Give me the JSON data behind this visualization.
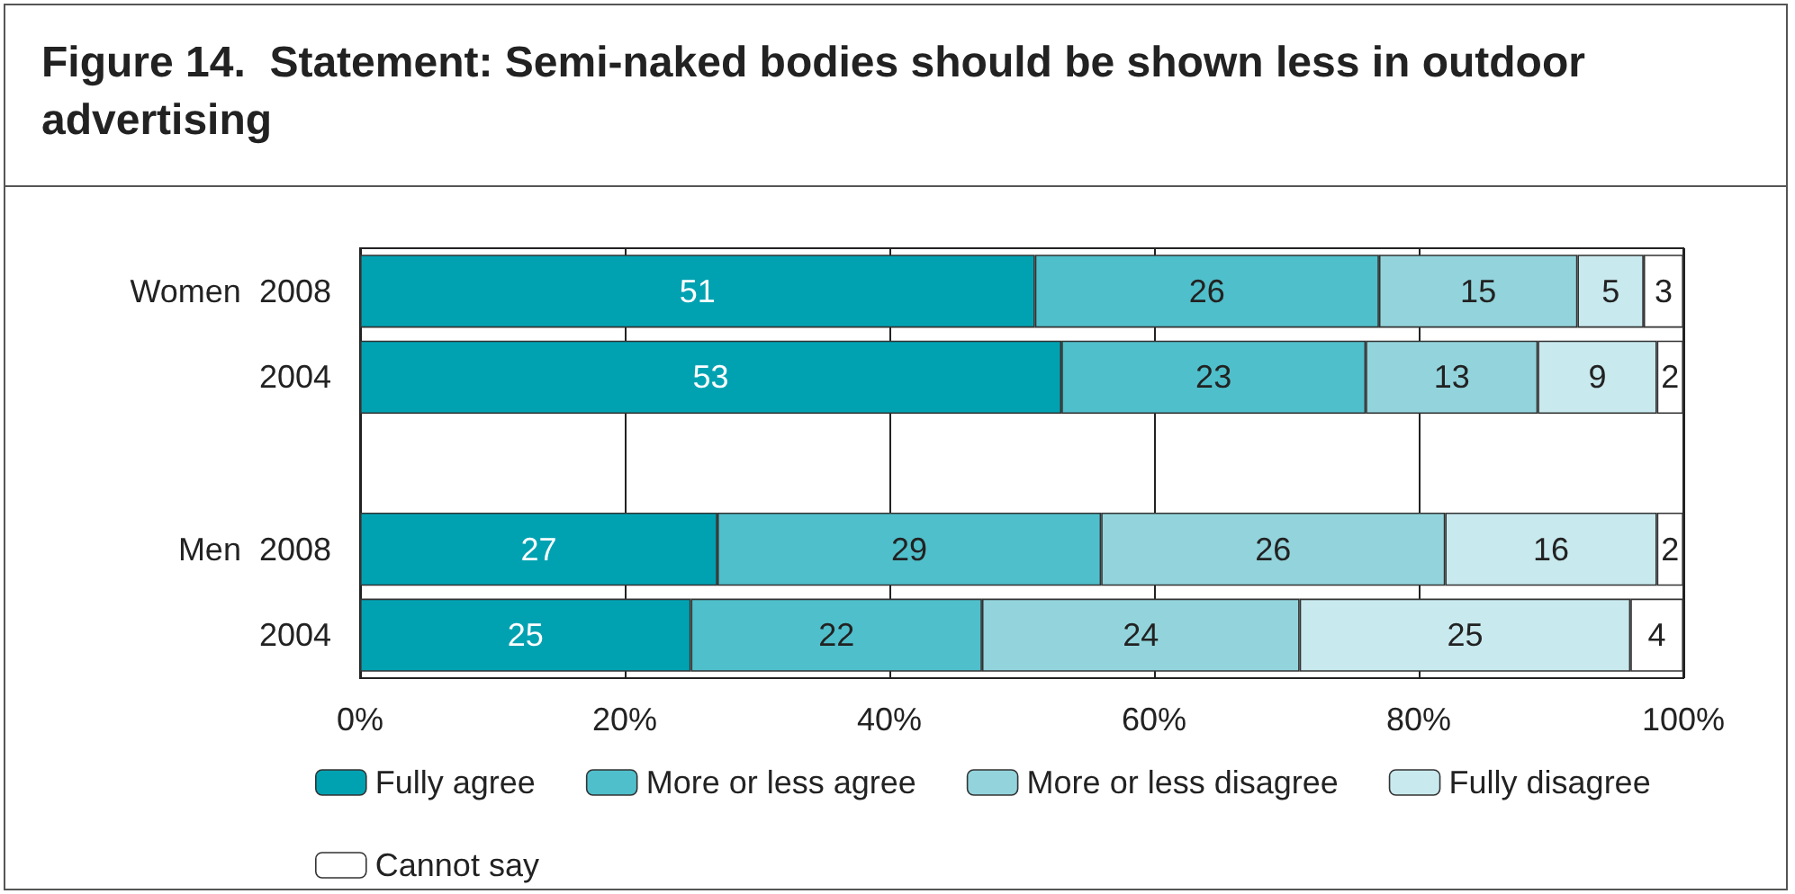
{
  "chart_data": {
    "type": "bar",
    "orientation": "horizontal",
    "stacked": true,
    "title": "Figure 14.  Statement: Semi-naked bodies should be shown less in outdoor advertising",
    "categories": [
      "Women  2008",
      "2004",
      null,
      "Men  2008",
      "2004"
    ],
    "series": [
      {
        "name": "Fully agree",
        "color": "#00a2b2",
        "values": [
          51,
          53,
          null,
          27,
          25
        ]
      },
      {
        "name": "More or less agree",
        "color": "#4fbfcb",
        "values": [
          26,
          23,
          null,
          29,
          22
        ]
      },
      {
        "name": "More or less disagree",
        "color": "#93d4dc",
        "values": [
          15,
          13,
          null,
          26,
          24
        ]
      },
      {
        "name": "Fully disagree",
        "color": "#c8e9ee",
        "values": [
          5,
          9,
          null,
          16,
          25
        ]
      },
      {
        "name": "Cannot say",
        "color": "#ffffff",
        "values": [
          3,
          2,
          null,
          2,
          4
        ]
      }
    ],
    "xlim": [
      0,
      100
    ],
    "xticks": [
      {
        "value": 0,
        "label": "0%"
      },
      {
        "value": 20,
        "label": "20%"
      },
      {
        "value": 40,
        "label": "40%"
      },
      {
        "value": 60,
        "label": "60%"
      },
      {
        "value": 80,
        "label": "80%"
      },
      {
        "value": 100,
        "label": "100%"
      }
    ],
    "grid": "x",
    "legend": "bottom",
    "data_labels": true
  }
}
